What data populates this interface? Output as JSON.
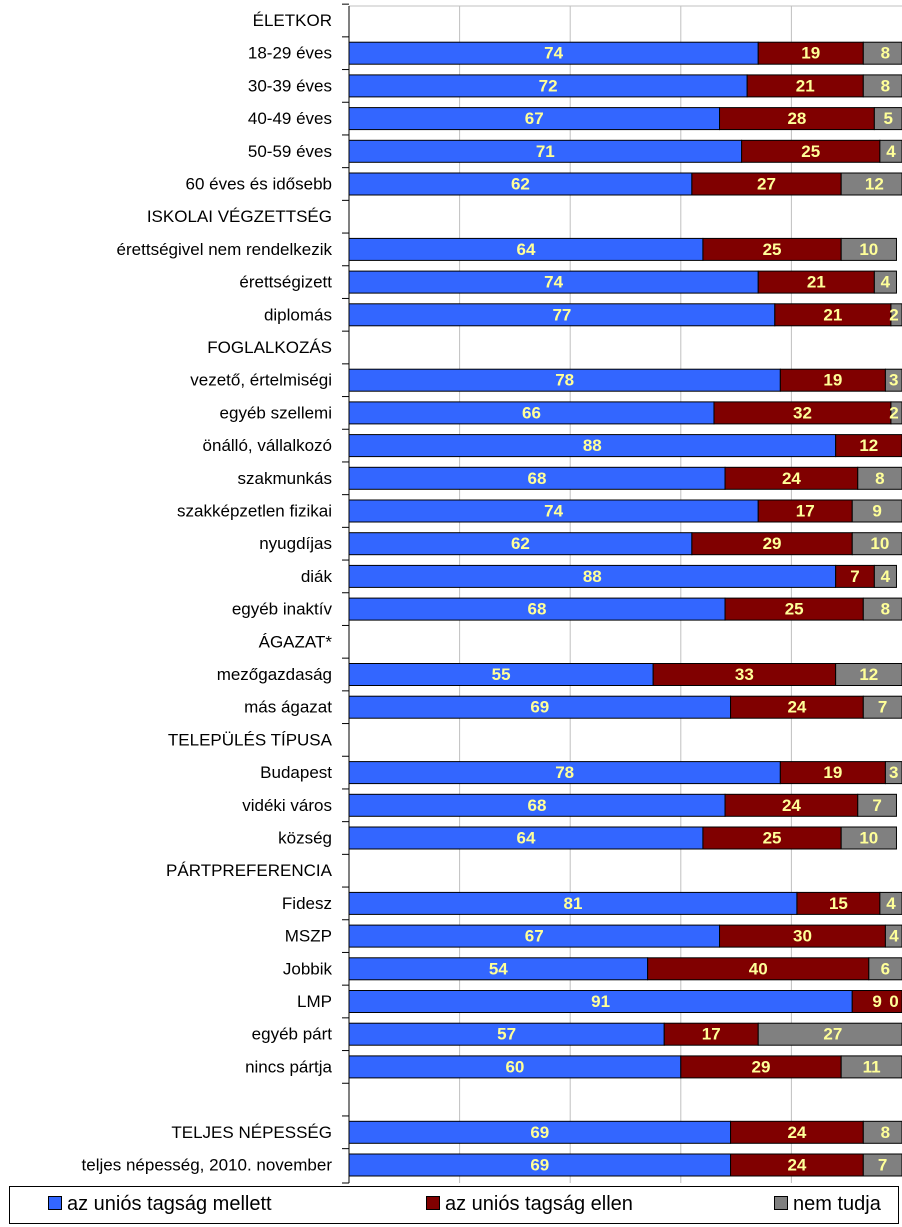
{
  "chart_data": {
    "type": "bar",
    "orientation": "horizontal",
    "stacked": "percent",
    "xlim": [
      0,
      100
    ],
    "grid": true,
    "legend_position": "bottom",
    "colors": {
      "mellett": "#3366ff",
      "ellen": "#800000",
      "nem_tudja": "#808080",
      "value_label": "#ffff99"
    },
    "series": [
      {
        "name": "az uniós tagság mellett"
      },
      {
        "name": "az uniós tagság ellen"
      },
      {
        "name": "nem tudja"
      }
    ],
    "rows": [
      {
        "label": "ÉLETKOR",
        "header": true
      },
      {
        "label": "18-29 éves",
        "values": [
          74,
          19,
          8
        ]
      },
      {
        "label": "30-39 éves",
        "values": [
          72,
          21,
          8
        ]
      },
      {
        "label": "40-49 éves",
        "values": [
          67,
          28,
          5
        ]
      },
      {
        "label": "50-59 éves",
        "values": [
          71,
          25,
          4
        ]
      },
      {
        "label": "60 éves és idősebb",
        "values": [
          62,
          27,
          12
        ]
      },
      {
        "label": "ISKOLAI VÉGZETTSÉG",
        "header": true
      },
      {
        "label": "érettségivel nem rendelkezik",
        "values": [
          64,
          25,
          10
        ]
      },
      {
        "label": "érettségizett",
        "values": [
          74,
          21,
          4
        ]
      },
      {
        "label": "diplomás",
        "values": [
          77,
          21,
          2
        ]
      },
      {
        "label": "FOGLALKOZÁS",
        "header": true
      },
      {
        "label": "vezető, értelmiségi",
        "values": [
          78,
          19,
          3
        ]
      },
      {
        "label": "egyéb szellemi",
        "values": [
          66,
          32,
          2
        ]
      },
      {
        "label": "önálló, vállalkozó",
        "values": [
          88,
          12,
          null
        ]
      },
      {
        "label": "szakmunkás",
        "values": [
          68,
          24,
          8
        ]
      },
      {
        "label": "szakképzetlen fizikai",
        "values": [
          74,
          17,
          9
        ]
      },
      {
        "label": "nyugdíjas",
        "values": [
          62,
          29,
          10
        ]
      },
      {
        "label": "diák",
        "values": [
          88,
          7,
          4
        ]
      },
      {
        "label": "egyéb inaktív",
        "values": [
          68,
          25,
          8
        ]
      },
      {
        "label": "ÁGAZAT*",
        "header": true
      },
      {
        "label": "mezőgazdaság",
        "values": [
          55,
          33,
          12
        ]
      },
      {
        "label": "más ágazat",
        "values": [
          69,
          24,
          7
        ]
      },
      {
        "label": "TELEPÜLÉS TÍPUSA",
        "header": true
      },
      {
        "label": "Budapest",
        "values": [
          78,
          19,
          3
        ]
      },
      {
        "label": "vidéki város",
        "values": [
          68,
          24,
          7
        ]
      },
      {
        "label": "község",
        "values": [
          64,
          25,
          10
        ]
      },
      {
        "label": "PÁRTPREFERENCIA",
        "header": true
      },
      {
        "label": "Fidesz",
        "values": [
          81,
          15,
          4
        ]
      },
      {
        "label": "MSZP",
        "values": [
          67,
          30,
          4
        ]
      },
      {
        "label": "Jobbik",
        "values": [
          54,
          40,
          6
        ]
      },
      {
        "label": "LMP",
        "values": [
          91,
          9,
          0
        ]
      },
      {
        "label": "egyéb párt",
        "values": [
          57,
          17,
          27
        ]
      },
      {
        "label": "nincs pártja",
        "values": [
          60,
          29,
          11
        ]
      },
      {
        "label": "",
        "header": true
      },
      {
        "label": "TELJES NÉPESSÉG",
        "values": [
          69,
          24,
          8
        ]
      },
      {
        "label": "teljes népesség, 2010. november",
        "values": [
          69,
          24,
          7
        ]
      }
    ]
  },
  "legend": {
    "items": [
      {
        "label": "az uniós tagság mellett"
      },
      {
        "label": "az uniós tagság ellen"
      },
      {
        "label": "nem tudja"
      }
    ]
  }
}
